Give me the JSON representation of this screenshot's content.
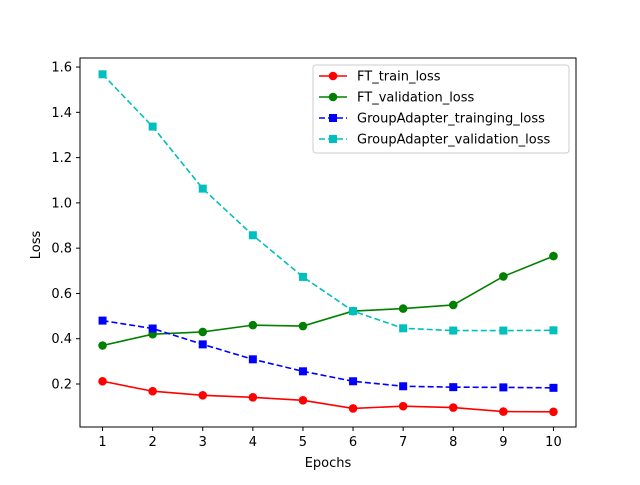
{
  "chart_data": {
    "type": "line",
    "xlabel": "Epochs",
    "ylabel": "Loss",
    "x": [
      1,
      2,
      3,
      4,
      5,
      6,
      7,
      8,
      9,
      10
    ],
    "xticks": [
      1,
      2,
      3,
      4,
      5,
      6,
      7,
      8,
      9,
      10
    ],
    "yticks": [
      "0.2",
      "0.4",
      "0.6",
      "0.8",
      "1.0",
      "1.2",
      "1.4",
      "1.6"
    ],
    "xlim": [
      0.55,
      10.45
    ],
    "ylim": [
      0.01,
      1.64
    ],
    "grid": false,
    "legend_position": "top-right",
    "series": [
      {
        "name": "FT_train_loss",
        "color": "#ff0000",
        "linestyle": "solid",
        "marker": "circle",
        "values": [
          0.212,
          0.168,
          0.15,
          0.141,
          0.128,
          0.092,
          0.102,
          0.096,
          0.078,
          0.077
        ]
      },
      {
        "name": "FT_validation_loss",
        "color": "#008000",
        "linestyle": "solid",
        "marker": "circle",
        "values": [
          0.37,
          0.42,
          0.43,
          0.46,
          0.456,
          0.522,
          0.533,
          0.549,
          0.675,
          0.765
        ]
      },
      {
        "name": "GroupAdapter_trainging_loss",
        "color": "#0000ff",
        "linestyle": "dashed",
        "marker": "square",
        "values": [
          0.48,
          0.445,
          0.375,
          0.309,
          0.256,
          0.212,
          0.19,
          0.186,
          0.185,
          0.183
        ]
      },
      {
        "name": "GroupAdapter_validation_loss",
        "color": "#00bfbf",
        "linestyle": "dashed",
        "marker": "square",
        "values": [
          1.568,
          1.337,
          1.063,
          0.857,
          0.673,
          0.522,
          0.446,
          0.436,
          0.436,
          0.437
        ]
      }
    ]
  }
}
